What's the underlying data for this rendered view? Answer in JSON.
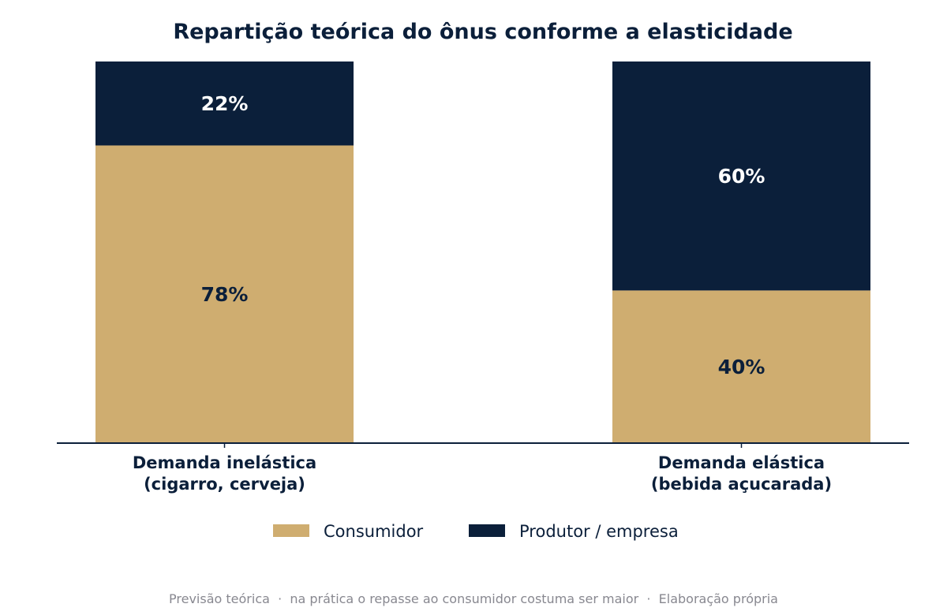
{
  "chart_data": {
    "type": "bar",
    "stacked": true,
    "orientation": "vertical",
    "title": "Repartição teórica do ônus conforme a elasticidade",
    "categories": [
      [
        "Demanda inelástica",
        "(cigarro, cerveja)"
      ],
      [
        "Demanda elástica",
        "(bebida açucarada)"
      ]
    ],
    "series": [
      {
        "name": "Consumidor",
        "values": [
          78,
          40
        ],
        "color": "#cfad70",
        "label_color": "#0b1f3a"
      },
      {
        "name": "Produtor / empresa",
        "values": [
          22,
          60
        ],
        "color": "#0b1f3a",
        "label_color": "#ffffff"
      }
    ],
    "value_format": "{v}%",
    "ylim": [
      0,
      100
    ],
    "y_axis_visible": false,
    "grid": false,
    "legend_position": "bottom-center",
    "footnote": "Previsão teórica  ·  na prática o repasse ao consumidor costuma ser maior  ·  Elaboração própria"
  },
  "colors": {
    "title": "#0b1f3a",
    "axis": "#0b1f3a",
    "footnote": "#888890",
    "background": "#ffffff"
  }
}
